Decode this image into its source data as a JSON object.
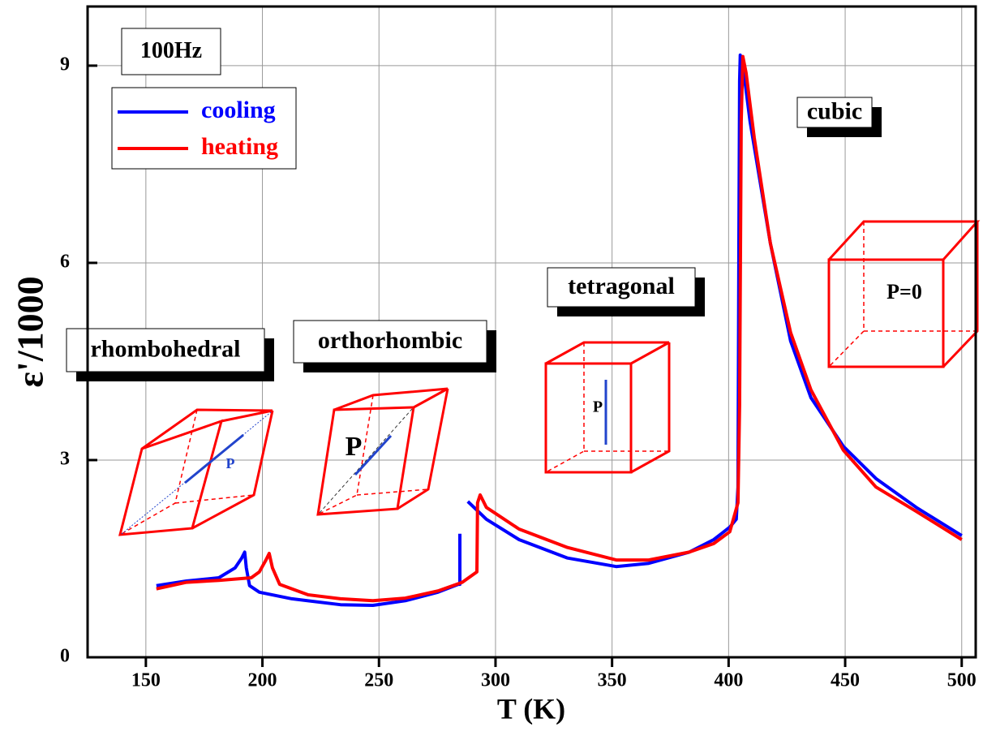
{
  "chart_data": {
    "type": "line",
    "xlabel": "T (K)",
    "ylabel": "ε'/1000",
    "xlim": [
      125,
      506
    ],
    "ylim": [
      0,
      9.9
    ],
    "xticks": [
      150,
      200,
      250,
      300,
      350,
      400,
      450,
      500
    ],
    "yticks": [
      0,
      3,
      6,
      9
    ],
    "grid": true,
    "legend": "upper left",
    "series": [
      {
        "name": "cooling",
        "color": "#0000ff",
        "x": [
          154.5,
          167.4,
          181.3,
          188.3,
          191.1,
          192.4,
          193.1,
          194.5,
          198.7,
          212.6,
          233.5,
          247.4,
          261.3,
          275.3,
          284.0,
          284.7,
          284.7,
          286.4,
          288.1,
          296.1,
          310.1,
          330.9,
          351.8,
          365.7,
          383.1,
          393.6,
          400.5,
          403.3,
          404.0,
          404.4,
          404.7,
          405.0,
          406.1,
          409.2,
          417.9,
          426.6,
          435.3,
          449.2,
          463.2,
          480.5,
          500.0
        ],
        "values": [
          1.09,
          1.16,
          1.21,
          1.36,
          1.51,
          1.6,
          1.36,
          1.09,
          0.99,
          0.89,
          0.8,
          0.79,
          0.86,
          0.99,
          1.11,
          1.11,
          1.88,
          null,
          2.37,
          2.1,
          1.79,
          1.51,
          1.38,
          1.43,
          1.6,
          1.79,
          1.98,
          2.1,
          2.59,
          6.3,
          8.77,
          9.16,
          9.01,
          8.15,
          6.3,
          4.81,
          3.95,
          3.21,
          2.72,
          2.28,
          1.85
        ]
      },
      {
        "name": "heating",
        "color": "#ff0000",
        "x": [
          154.5,
          167.4,
          181.3,
          195.2,
          198.7,
          201.5,
          202.9,
          204.3,
          207.4,
          219.6,
          233.5,
          247.4,
          261.3,
          275.3,
          285.7,
          292.0,
          292.3,
          293.4,
          296.1,
          310.1,
          330.9,
          351.8,
          365.7,
          383.1,
          393.6,
          400.5,
          404.0,
          404.7,
          405.4,
          406.1,
          407.5,
          411.0,
          417.9,
          426.6,
          435.3,
          449.2,
          463.2,
          480.5,
          500.0
        ],
        "values": [
          1.04,
          1.14,
          1.17,
          1.21,
          1.3,
          1.48,
          1.58,
          1.36,
          1.11,
          0.95,
          0.89,
          0.86,
          0.9,
          1.01,
          1.14,
          1.3,
          2.35,
          2.47,
          2.28,
          1.95,
          1.67,
          1.48,
          1.48,
          1.6,
          1.73,
          1.91,
          2.35,
          3.83,
          8.15,
          9.14,
          8.89,
          7.9,
          6.3,
          4.94,
          4.07,
          3.15,
          2.59,
          2.22,
          1.79
        ]
      }
    ],
    "annotations": [
      "100Hz",
      "rhombohedral",
      "orthorhombic",
      "tetragonal",
      "cubic"
    ],
    "crystal_labels": [
      "P",
      "P",
      "P",
      "P=0"
    ]
  }
}
